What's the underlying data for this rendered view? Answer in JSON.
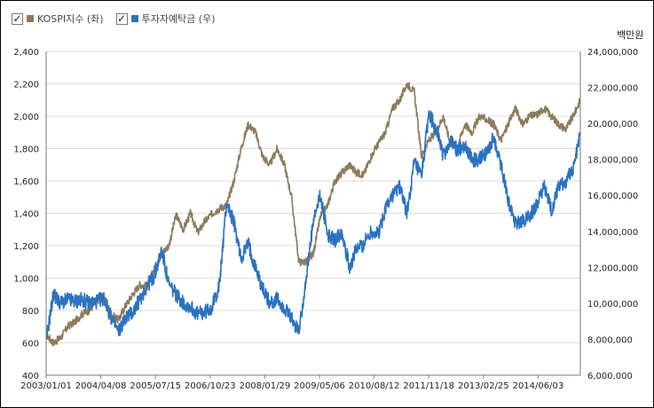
{
  "legend": [
    {
      "label": "KOSPI지수 (좌)",
      "color": "#8c7b5c",
      "checked": true,
      "icon": "checkbox-checked-icon"
    },
    {
      "label": "투자자예탁금 (우)",
      "color": "#2a72c0",
      "checked": true,
      "icon": "checkbox-checked-icon"
    }
  ],
  "unit_label": "백만원",
  "chart_data": {
    "type": "line",
    "x_tick_labels": [
      "2003/01/01",
      "2004/04/08",
      "2005/07/15",
      "2006/10/23",
      "2008/01/29",
      "2009/05/06",
      "2010/08/12",
      "2011/11/18",
      "2013/02/25",
      "2014/06/03"
    ],
    "y_left": {
      "ticks": [
        400,
        600,
        800,
        1000,
        1200,
        1400,
        1600,
        1800,
        2000,
        2200,
        2400
      ],
      "lim": [
        400,
        2400
      ]
    },
    "y_right": {
      "ticks": [
        6000000,
        8000000,
        10000000,
        12000000,
        14000000,
        16000000,
        18000000,
        20000000,
        22000000,
        24000000
      ],
      "tick_labels": [
        "6,000,000",
        "8,000,000",
        "10,000,000",
        "12,000,000",
        "14,000,000",
        "16,000,000",
        "18,000,000",
        "20,000,000",
        "22,000,000",
        "24,000,000"
      ],
      "lim": [
        6000000,
        24000000
      ]
    },
    "grid": true,
    "x": [
      "2003/01",
      "2003/03",
      "2003/05",
      "2003/07",
      "2003/09",
      "2003/11",
      "2004/01",
      "2004/03",
      "2004/05",
      "2004/07",
      "2004/09",
      "2004/11",
      "2005/01",
      "2005/03",
      "2005/05",
      "2005/07",
      "2005/09",
      "2005/11",
      "2006/01",
      "2006/03",
      "2006/05",
      "2006/07",
      "2006/09",
      "2006/11",
      "2007/01",
      "2007/03",
      "2007/05",
      "2007/07",
      "2007/09",
      "2007/11",
      "2008/01",
      "2008/03",
      "2008/05",
      "2008/07",
      "2008/09",
      "2008/11",
      "2009/01",
      "2009/03",
      "2009/05",
      "2009/07",
      "2009/09",
      "2009/11",
      "2010/01",
      "2010/03",
      "2010/05",
      "2010/07",
      "2010/09",
      "2010/11",
      "2011/01",
      "2011/03",
      "2011/05",
      "2011/07",
      "2011/09",
      "2011/11",
      "2012/01",
      "2012/03",
      "2012/05",
      "2012/07",
      "2012/09",
      "2012/11",
      "2013/01",
      "2013/03",
      "2013/05",
      "2013/07",
      "2013/09",
      "2013/11",
      "2014/01",
      "2014/03",
      "2014/05",
      "2014/07",
      "2014/09",
      "2014/11",
      "2015/01",
      "2015/03",
      "2015/05"
    ],
    "series": [
      {
        "name": "KOSPI지수 (좌)",
        "axis": "left",
        "color": "#8c7b5c",
        "values": [
          650,
          600,
          630,
          700,
          730,
          780,
          800,
          860,
          880,
          780,
          740,
          830,
          900,
          960,
          950,
          1060,
          1150,
          1200,
          1390,
          1300,
          1400,
          1280,
          1350,
          1400,
          1430,
          1450,
          1600,
          1800,
          1950,
          1900,
          1750,
          1700,
          1800,
          1700,
          1500,
          1100,
          1100,
          1150,
          1380,
          1450,
          1600,
          1650,
          1700,
          1650,
          1640,
          1750,
          1830,
          1900,
          2050,
          2100,
          2200,
          2150,
          1750,
          1850,
          1900,
          2000,
          1830,
          1820,
          1950,
          1900,
          2000,
          1980,
          1950,
          1850,
          1950,
          2050,
          1950,
          2000,
          2010,
          2050,
          2000,
          1950,
          1920,
          2000,
          2100
        ]
      },
      {
        "name": "투자자예탁금 (우)",
        "axis": "right",
        "color": "#2a72c0",
        "values": [
          7900000,
          10500000,
          10000000,
          10200000,
          10100000,
          10200000,
          10000000,
          10100000,
          10300000,
          9200000,
          8400000,
          9200000,
          9500000,
          10200000,
          11000000,
          11500000,
          13000000,
          11000000,
          10500000,
          10000000,
          9800000,
          9400000,
          9500000,
          9800000,
          11000000,
          15600000,
          14500000,
          12500000,
          13300000,
          12000000,
          10800000,
          10000000,
          10200000,
          9700000,
          9100000,
          8400000,
          11300000,
          14500000,
          16000000,
          13800000,
          13500000,
          14000000,
          12000000,
          13000000,
          13300000,
          14000000,
          13800000,
          15300000,
          16000000,
          16500000,
          15000000,
          17800000,
          17000000,
          20500000,
          19800000,
          18200000,
          19000000,
          18500000,
          18800000,
          18000000,
          18000000,
          18300000,
          19200000,
          17700000,
          15800000,
          14500000,
          14600000,
          14900000,
          15500000,
          16500000,
          15100000,
          16500000,
          16800000,
          17500000,
          19500000
        ]
      }
    ]
  }
}
